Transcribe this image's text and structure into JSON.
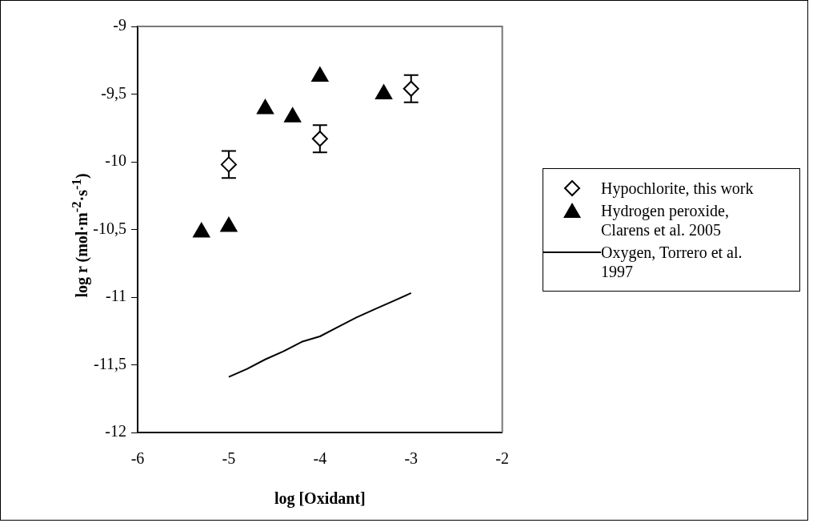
{
  "chart_data": {
    "type": "scatter",
    "xlabel": "log [Oxidant]",
    "ylabel": "log r (mol·m$^{-2}$·s$^{-1}$)",
    "xlim": [
      -6,
      -2
    ],
    "xticks": [
      -6,
      -5,
      -4,
      -3,
      -2
    ],
    "ylim": [
      -12,
      -9
    ],
    "yticks": [
      {
        "value": -12,
        "label": "-12"
      },
      {
        "value": -11.5,
        "label": "-11,5"
      },
      {
        "value": -11,
        "label": "-11"
      },
      {
        "value": -10.5,
        "label": "-10,5"
      },
      {
        "value": -10,
        "label": "-10"
      },
      {
        "value": -9.5,
        "label": "-9,5"
      },
      {
        "value": -9,
        "label": "-9"
      }
    ],
    "grid": false,
    "legend": "right",
    "series": [
      {
        "name": "Hypochlorite, this work",
        "type": "scatter",
        "marker": "diamond",
        "color": "#000000",
        "x": [
          -5,
          -4,
          -3
        ],
        "values": [
          -10.02,
          -9.83,
          -9.46
        ],
        "errors": [
          0.1,
          0.1,
          0.1
        ]
      },
      {
        "name": "Hydrogen peroxide, Clarens et al. 2005",
        "type": "scatter",
        "marker": "triangle",
        "color": "#000000",
        "x": [
          -5.3,
          -5,
          -4.6,
          -4.3,
          -4,
          -3.3
        ],
        "values": [
          -10.52,
          -10.48,
          -9.61,
          -9.67,
          -9.37,
          -9.5
        ]
      },
      {
        "name": "Oxygen, Torrero et al. 1997",
        "type": "line",
        "marker": "none",
        "line_style": "solid",
        "color": "#000000",
        "x": [
          -5,
          -4.8,
          -4.6,
          -4.4,
          -4.2,
          -4,
          -3.8,
          -3.6,
          -3.4,
          -3.2,
          -3
        ],
        "values": [
          -11.59,
          -11.53,
          -11.46,
          -11.4,
          -11.33,
          -11.29,
          -11.22,
          -11.15,
          -11.09,
          -11.03,
          -10.97
        ]
      }
    ]
  }
}
